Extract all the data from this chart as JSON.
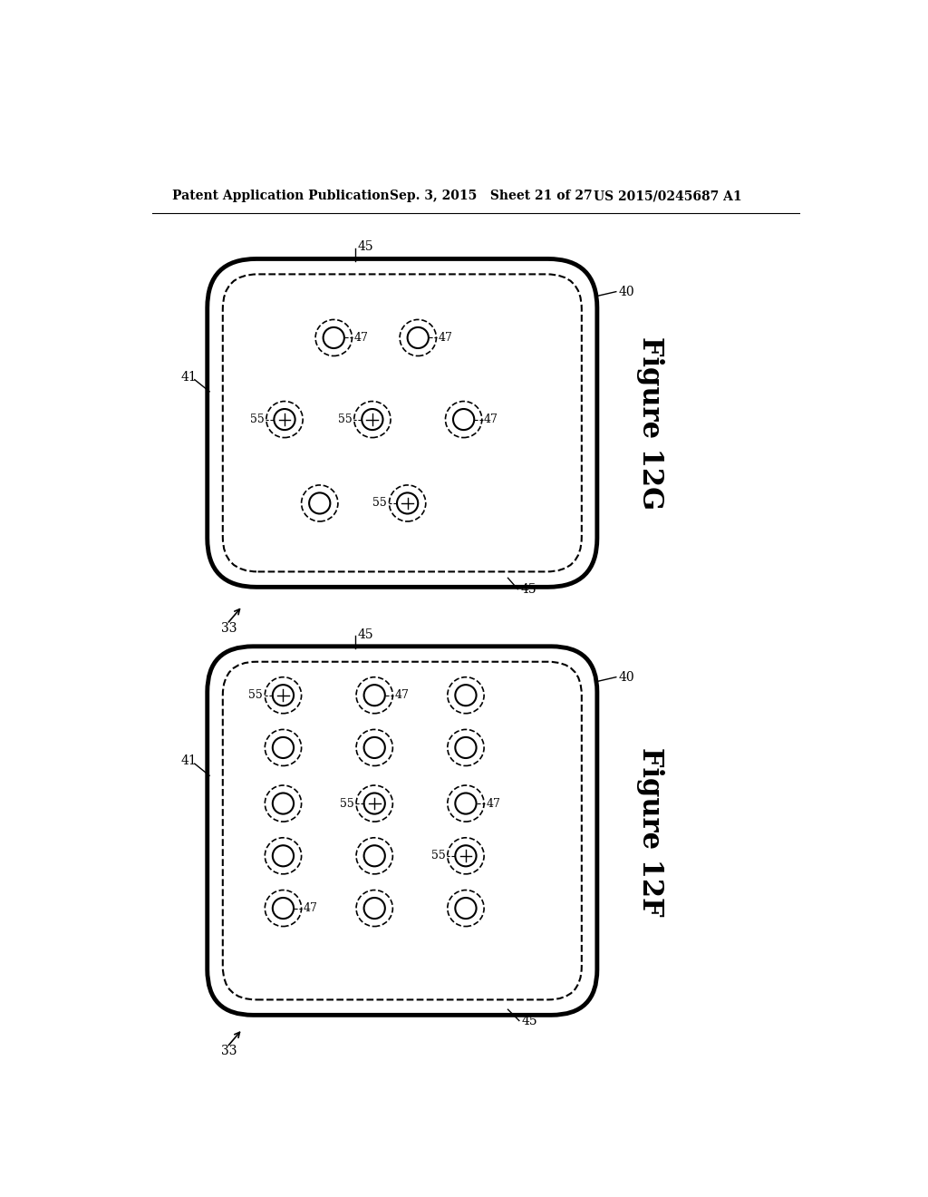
{
  "header_left": "Patent Application Publication",
  "header_mid": "Sep. 3, 2015   Sheet 21 of 27",
  "header_right": "US 2015/0245687 A1",
  "fig_top_label": "Figure 12G",
  "fig_bot_label": "Figure 12F",
  "background": "#ffffff"
}
